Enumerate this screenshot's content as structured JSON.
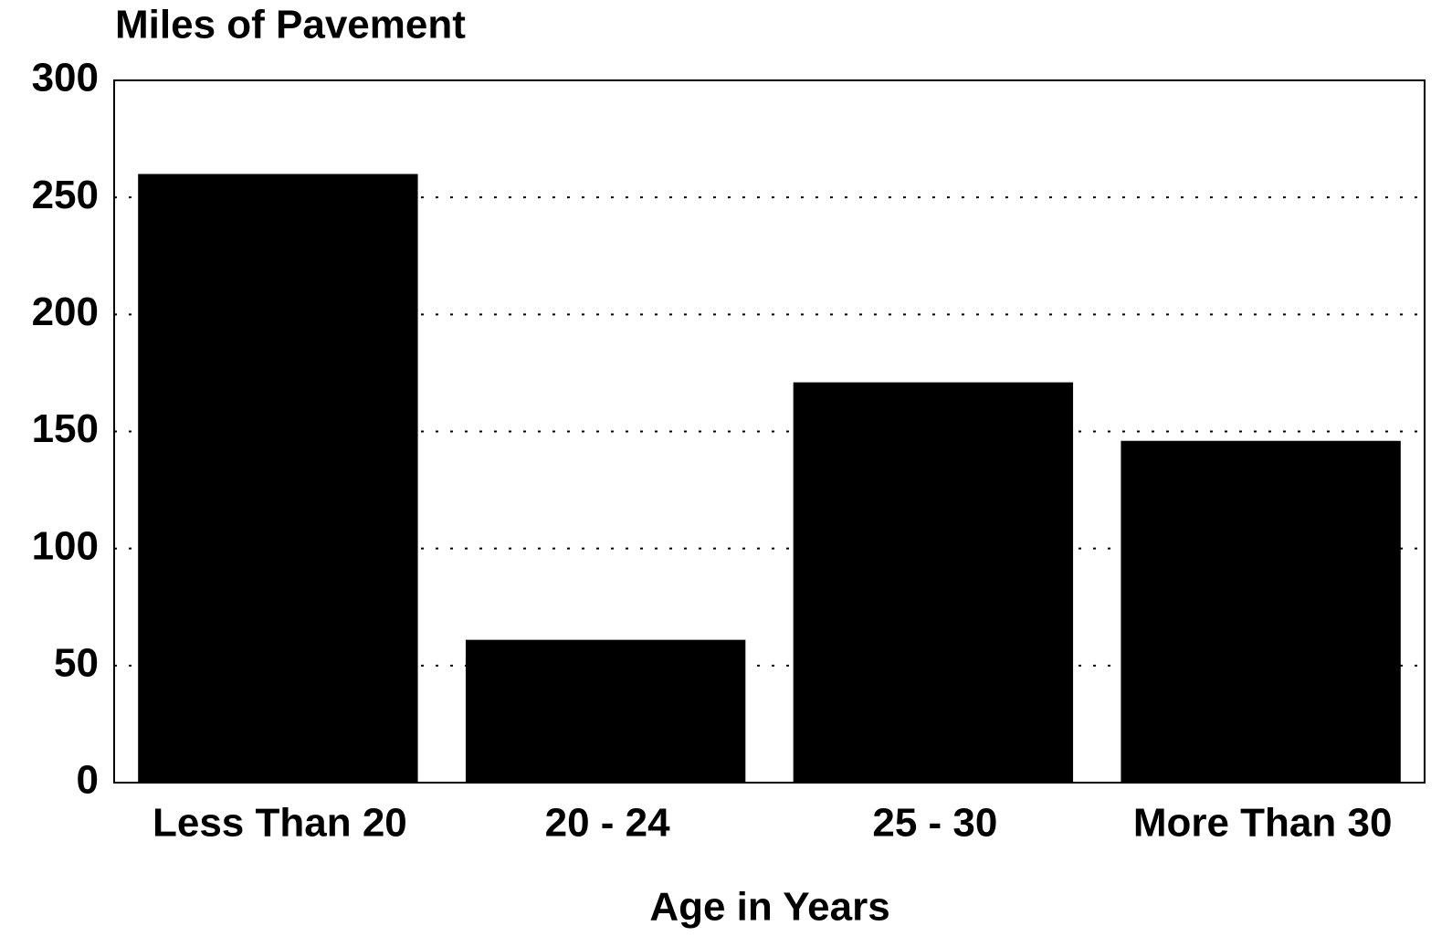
{
  "chart_data": {
    "type": "bar",
    "title": "Miles of Pavement",
    "x_label": "Age in Years",
    "categories": [
      "Less Than 20",
      "20 - 24",
      "25 - 30",
      "More Than 30"
    ],
    "values": [
      260,
      61,
      171,
      146
    ],
    "color": "#000000",
    "ylim": [
      0,
      300
    ],
    "yticks": [
      0,
      50,
      100,
      150,
      200,
      250,
      300
    ],
    "grid": true
  }
}
